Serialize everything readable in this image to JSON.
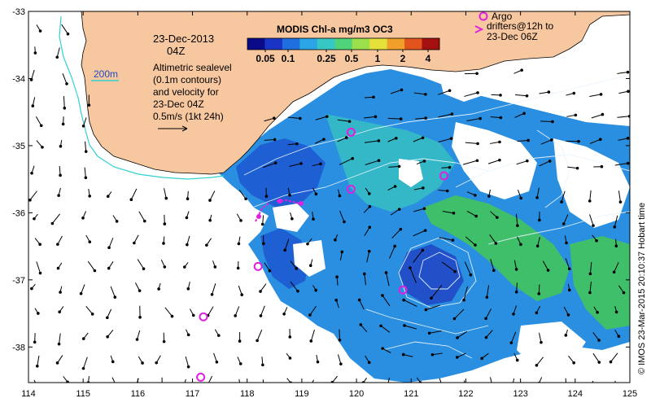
{
  "map": {
    "date_line1": "23-Dec-2013",
    "date_line2": "04Z",
    "contour_label": "200m",
    "info_lines": [
      "Altimetric sealevel",
      "(0.1m contours)",
      "and velocity for",
      "23-Dec 04Z"
    ],
    "scale_label": "0.5m/s (1kt 24h)",
    "argo_label_lines": [
      "Argo",
      "drifters@12h to",
      "23-Dec 06Z"
    ],
    "credit": "© IMOS 23-Mar-2015 20:10:37 Hobart time",
    "colorbar": {
      "title": "MODIS Chl-a mg/m3 OC3",
      "tick_labels": [
        "0.05",
        "0.1",
        "0.25",
        "0.5",
        "1",
        "2",
        "4"
      ],
      "colors": [
        "#0b0b8a",
        "#1a34c8",
        "#1f6fe0",
        "#2aa6e6",
        "#37c7c4",
        "#4fd47a",
        "#9be04a",
        "#e6e03a",
        "#f0a02a",
        "#e2531e",
        "#a41010"
      ]
    },
    "x_ticks": [
      "114",
      "115",
      "116",
      "117",
      "118",
      "119",
      "120",
      "121",
      "122",
      "123",
      "124",
      "125"
    ],
    "y_ticks": [
      "-33",
      "-34",
      "-35",
      "-36",
      "-37",
      "-38"
    ],
    "colors": {
      "land": "#f7c8a0",
      "deep_ocean": "#1e5fd4",
      "mid_ocean": "#2a8fe0",
      "shelf_ocean": "#34b7c6",
      "green_patch": "#3fbf6a",
      "isobath": "#30d0d0",
      "argo": "#e020e0",
      "contour": "#e8f4ff"
    },
    "argo_points": [
      {
        "lon": 119.9,
        "lat": -34.8
      },
      {
        "lon": 119.9,
        "lat": -35.65
      },
      {
        "lon": 121.6,
        "lat": -35.45
      },
      {
        "lon": 118.2,
        "lat": -36.8
      },
      {
        "lon": 120.85,
        "lat": -37.15
      },
      {
        "lon": 117.2,
        "lat": -37.55
      },
      {
        "lon": 117.15,
        "lat": -38.45
      }
    ]
  }
}
